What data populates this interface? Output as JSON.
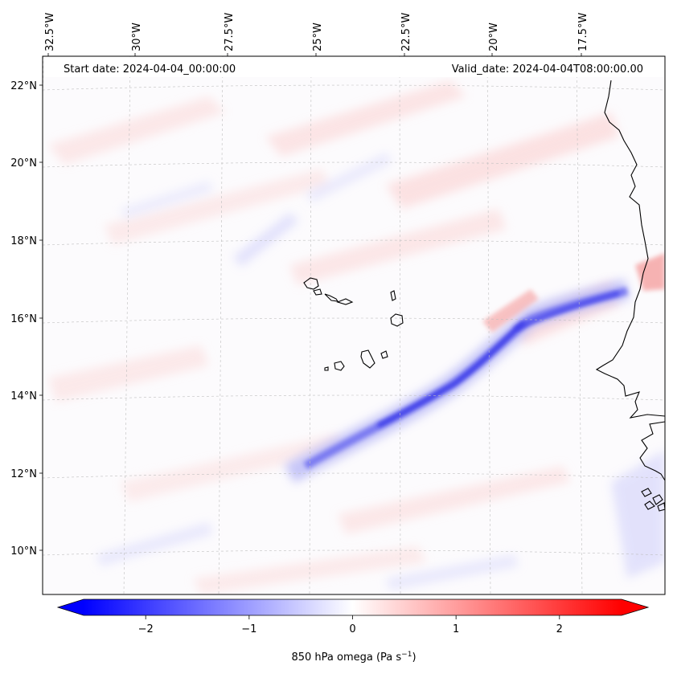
{
  "map": {
    "start_label": "Start date: 2024-04-04_00:00:00",
    "valid_label": "Valid_date: 2024-04-04T08:00:00.00",
    "lon_labels": [
      "32.5°W",
      "30°W",
      "27.5°W",
      "25°W",
      "22.5°W",
      "20°W",
      "17.5°W"
    ],
    "lat_labels": [
      "22°N",
      "20°N",
      "18°N",
      "16°N",
      "14°N",
      "12°N",
      "10°N"
    ],
    "lon_range": [
      -33,
      -15.5
    ],
    "lat_range": [
      9,
      22.8
    ],
    "gridlines": true
  },
  "colorbar": {
    "label_prefix": "850 hPa omega (Pa s",
    "label_exp": "−1",
    "label_suffix": ")",
    "ticks": [
      "−2",
      "−1",
      "0",
      "1",
      "2"
    ],
    "tick_values": [
      -2,
      -1,
      0,
      1,
      2
    ],
    "range": [
      -2.6,
      2.6
    ],
    "cmap": "bwr",
    "extend": "both",
    "color_low": "#0000ff",
    "color_mid": "#ffffff",
    "color_high": "#ff0000"
  },
  "colors": {
    "gridline": "#bfbfbf",
    "coastline": "#000000",
    "frame": "#000000"
  }
}
